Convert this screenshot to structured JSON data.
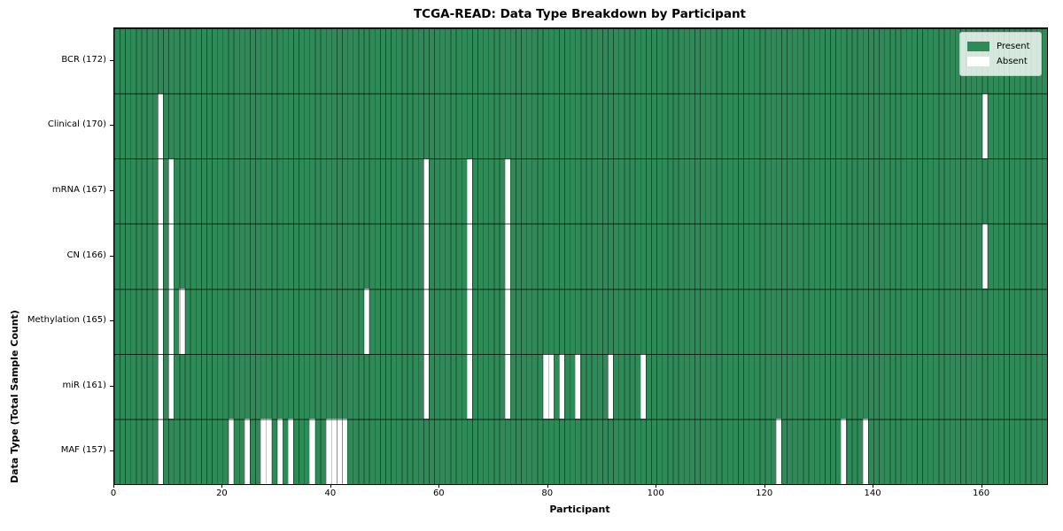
{
  "title": "TCGA-READ: Data Type Breakdown by Participant",
  "chart_data": {
    "type": "heatmap",
    "title": "TCGA-READ: Data Type Breakdown by Participant",
    "xlabel": "Participant",
    "ylabel": "Data Type (Total Sample Count)",
    "n_participants": 172,
    "x_ticks": [
      0,
      20,
      40,
      60,
      80,
      100,
      120,
      140,
      160
    ],
    "legend": [
      {
        "label": "Present",
        "color": "#2e8b57"
      },
      {
        "label": "Absent",
        "color": "#ffffff"
      }
    ],
    "colors": {
      "present": "#2e8b57",
      "absent": "#ffffff",
      "cell_edge": "rgba(0,0,0,0.45)",
      "row_divider": "rgba(0,0,0,0.75)"
    },
    "rows": [
      {
        "label": "BCR (172)",
        "name": "BCR",
        "total": 172,
        "absent_participants": []
      },
      {
        "label": "Clinical (170)",
        "name": "Clinical",
        "total": 170,
        "absent_participants": [
          8,
          160
        ]
      },
      {
        "label": "mRNA (167)",
        "name": "mRNA",
        "total": 167,
        "absent_participants": [
          8,
          10,
          57,
          65,
          72
        ]
      },
      {
        "label": "CN (166)",
        "name": "CN",
        "total": 166,
        "absent_participants": [
          8,
          10,
          57,
          65,
          72,
          160
        ]
      },
      {
        "label": "Methylation (165)",
        "name": "Methylation",
        "total": 165,
        "absent_participants": [
          8,
          10,
          12,
          46,
          57,
          65,
          72
        ]
      },
      {
        "label": "miR (161)",
        "name": "miR",
        "total": 161,
        "absent_participants": [
          8,
          10,
          57,
          65,
          72,
          79,
          80,
          82,
          85,
          91,
          97
        ]
      },
      {
        "label": "MAF (157)",
        "name": "MAF",
        "total": 157,
        "absent_participants": [
          8,
          21,
          24,
          27,
          28,
          30,
          32,
          36,
          39,
          40,
          41,
          42,
          122,
          134,
          138
        ]
      }
    ]
  }
}
